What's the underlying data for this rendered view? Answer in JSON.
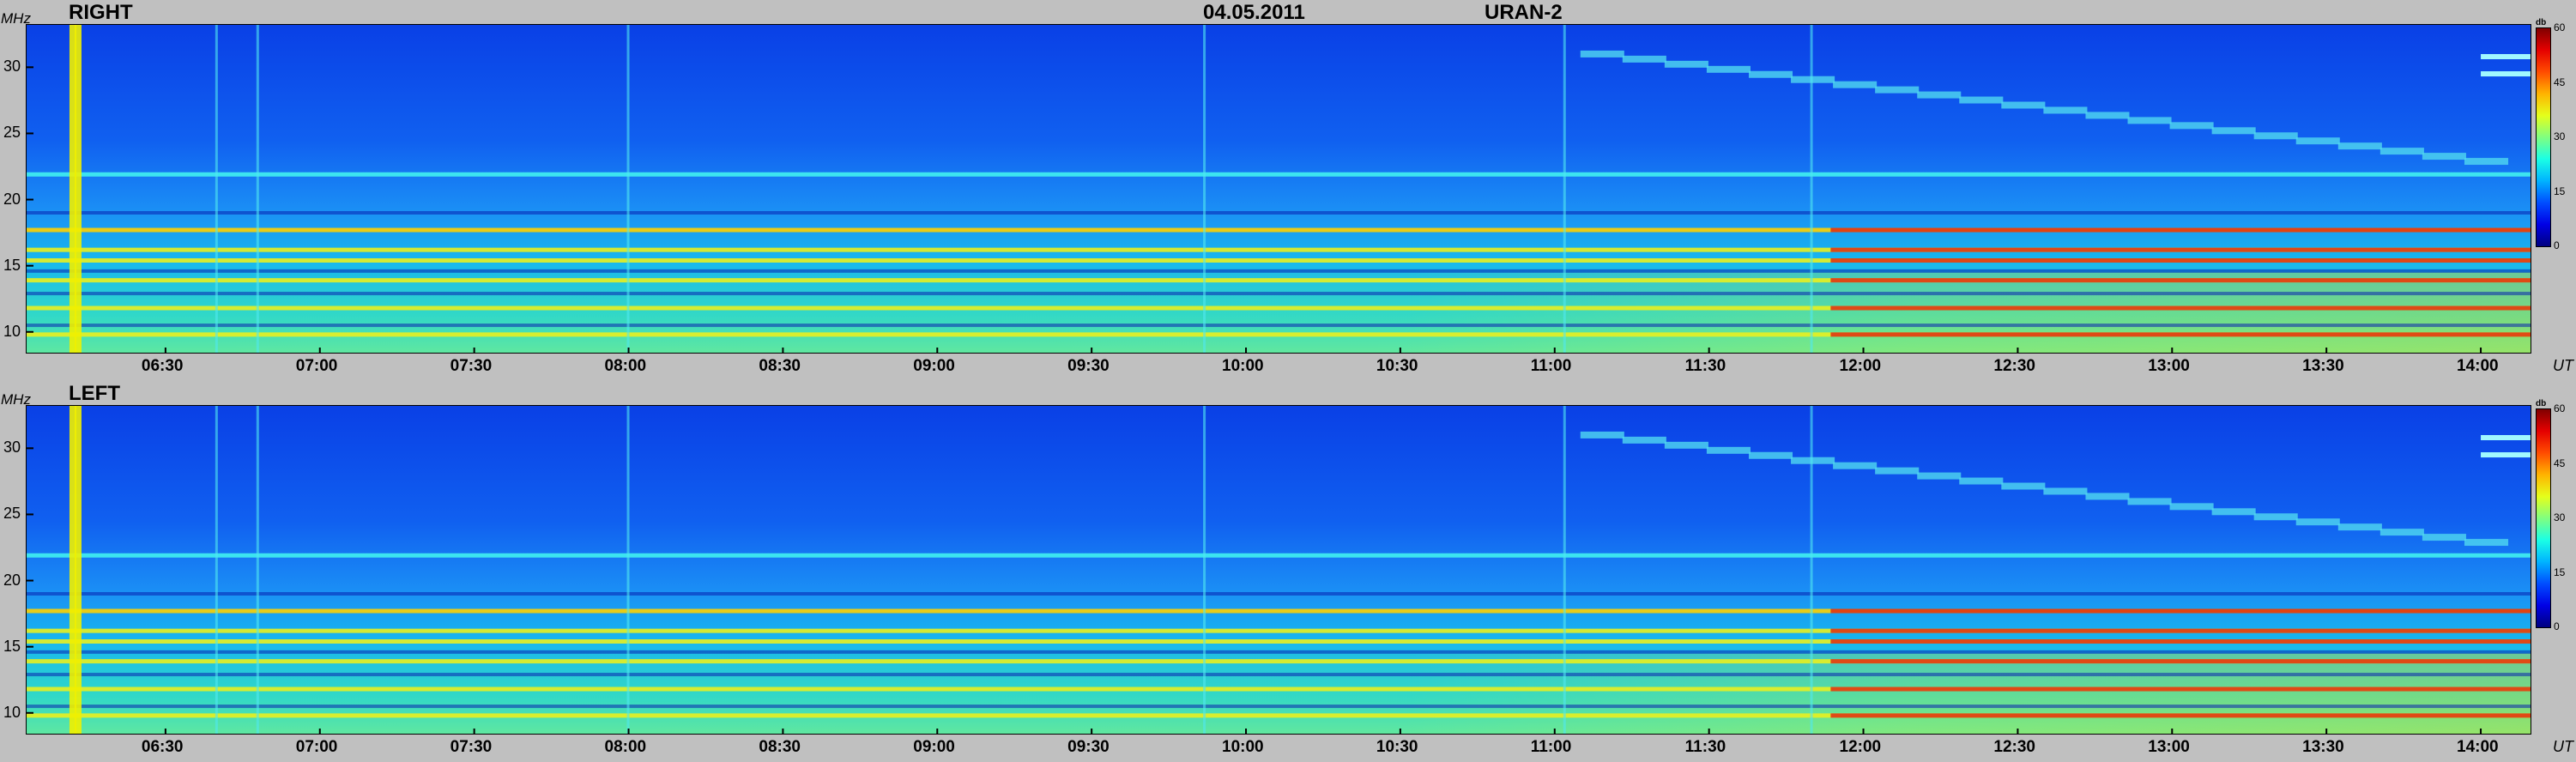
{
  "header": {
    "date": "04.05.2011",
    "instrument": "URAN-2"
  },
  "colors": {
    "background": "#c0c0c0",
    "spectrum_low": "#0000ff",
    "spectrum_mid": "#00ffff",
    "spectrum_high": "#ff0000"
  },
  "chart_data": [
    {
      "type": "heatmap",
      "title": "RIGHT",
      "ylabel": "MHz",
      "xlabel": "UT",
      "ylim": [
        8.3,
        33.2
      ],
      "yticks": [
        "30",
        "25",
        "20",
        "15",
        "10"
      ],
      "ytick_values": [
        30,
        25,
        20,
        15,
        10
      ],
      "xlim": [
        "06:03",
        "14:10"
      ],
      "xticks": [
        "06:30",
        "07:00",
        "07:30",
        "08:00",
        "08:30",
        "09:00",
        "09:30",
        "10:00",
        "10:30",
        "11:00",
        "11:30",
        "12:00",
        "12:30",
        "13:00",
        "13:30",
        "14:00"
      ],
      "colorbar": {
        "label": "db",
        "ticks": [
          "60",
          "45",
          "30",
          "15",
          "0"
        ],
        "range": [
          0,
          60
        ]
      },
      "persistent_lines_mhz": [
        9.8,
        11.8,
        13.9,
        15.4,
        16.2,
        17.7,
        21.9
      ],
      "drifting_burst": {
        "start": {
          "time": "11:05",
          "mhz": 31.0
        },
        "end": {
          "time": "14:05",
          "mhz": 22.5
        }
      },
      "vertical_bursts_time": [
        "06:12",
        "06:13",
        "06:40",
        "06:48",
        "08:00",
        "09:52",
        "11:02",
        "11:50"
      ]
    },
    {
      "type": "heatmap",
      "title": "LEFT",
      "ylabel": "MHz",
      "xlabel": "UT",
      "ylim": [
        8.3,
        33.2
      ],
      "yticks": [
        "30",
        "25",
        "20",
        "15",
        "10"
      ],
      "ytick_values": [
        30,
        25,
        20,
        15,
        10
      ],
      "xlim": [
        "06:03",
        "14:10"
      ],
      "xticks": [
        "06:30",
        "07:00",
        "07:30",
        "08:00",
        "08:30",
        "09:00",
        "09:30",
        "10:00",
        "10:30",
        "11:00",
        "11:30",
        "12:00",
        "12:30",
        "13:00",
        "13:30",
        "14:00"
      ],
      "colorbar": {
        "label": "db",
        "ticks": [
          "60",
          "45",
          "30",
          "15",
          "0"
        ],
        "range": [
          0,
          60
        ]
      },
      "persistent_lines_mhz": [
        9.8,
        11.8,
        13.9,
        15.4,
        16.2,
        17.7,
        21.9
      ],
      "drifting_burst": {
        "start": {
          "time": "11:05",
          "mhz": 31.0
        },
        "end": {
          "time": "14:05",
          "mhz": 22.5
        }
      },
      "vertical_bursts_time": [
        "06:12",
        "06:13",
        "06:40",
        "06:48",
        "08:00",
        "09:52",
        "11:02",
        "11:50"
      ]
    }
  ]
}
